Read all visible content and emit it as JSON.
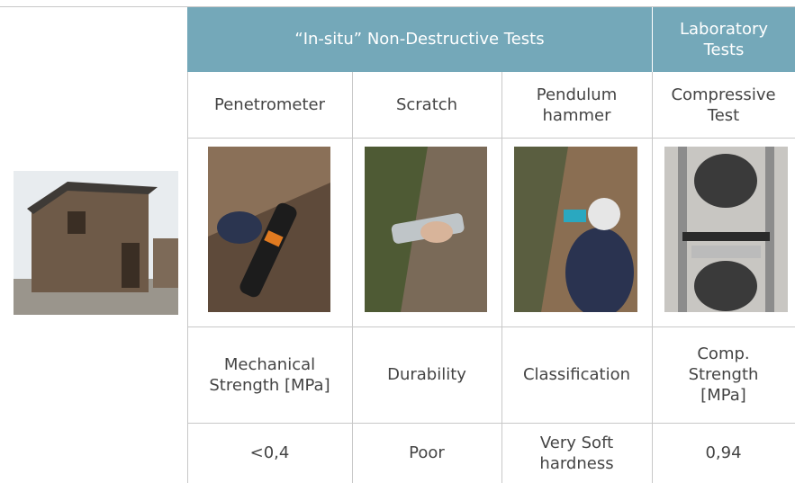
{
  "table": {
    "header": [
      "“In-situ” Non-Destructive Tests",
      "Laboratory Tests"
    ],
    "rows": [
      [
        "Penetrometer",
        "Scratch",
        "Pendulum hammer",
        "Compressive Test"
      ],
      [
        "Mechanical Strength [MPa]",
        "Durability",
        "Classification",
        "Comp. Strength [MPa]"
      ],
      [
        "<0,4",
        "Poor",
        "Very Soft hardness",
        "0,94"
      ]
    ]
  }
}
